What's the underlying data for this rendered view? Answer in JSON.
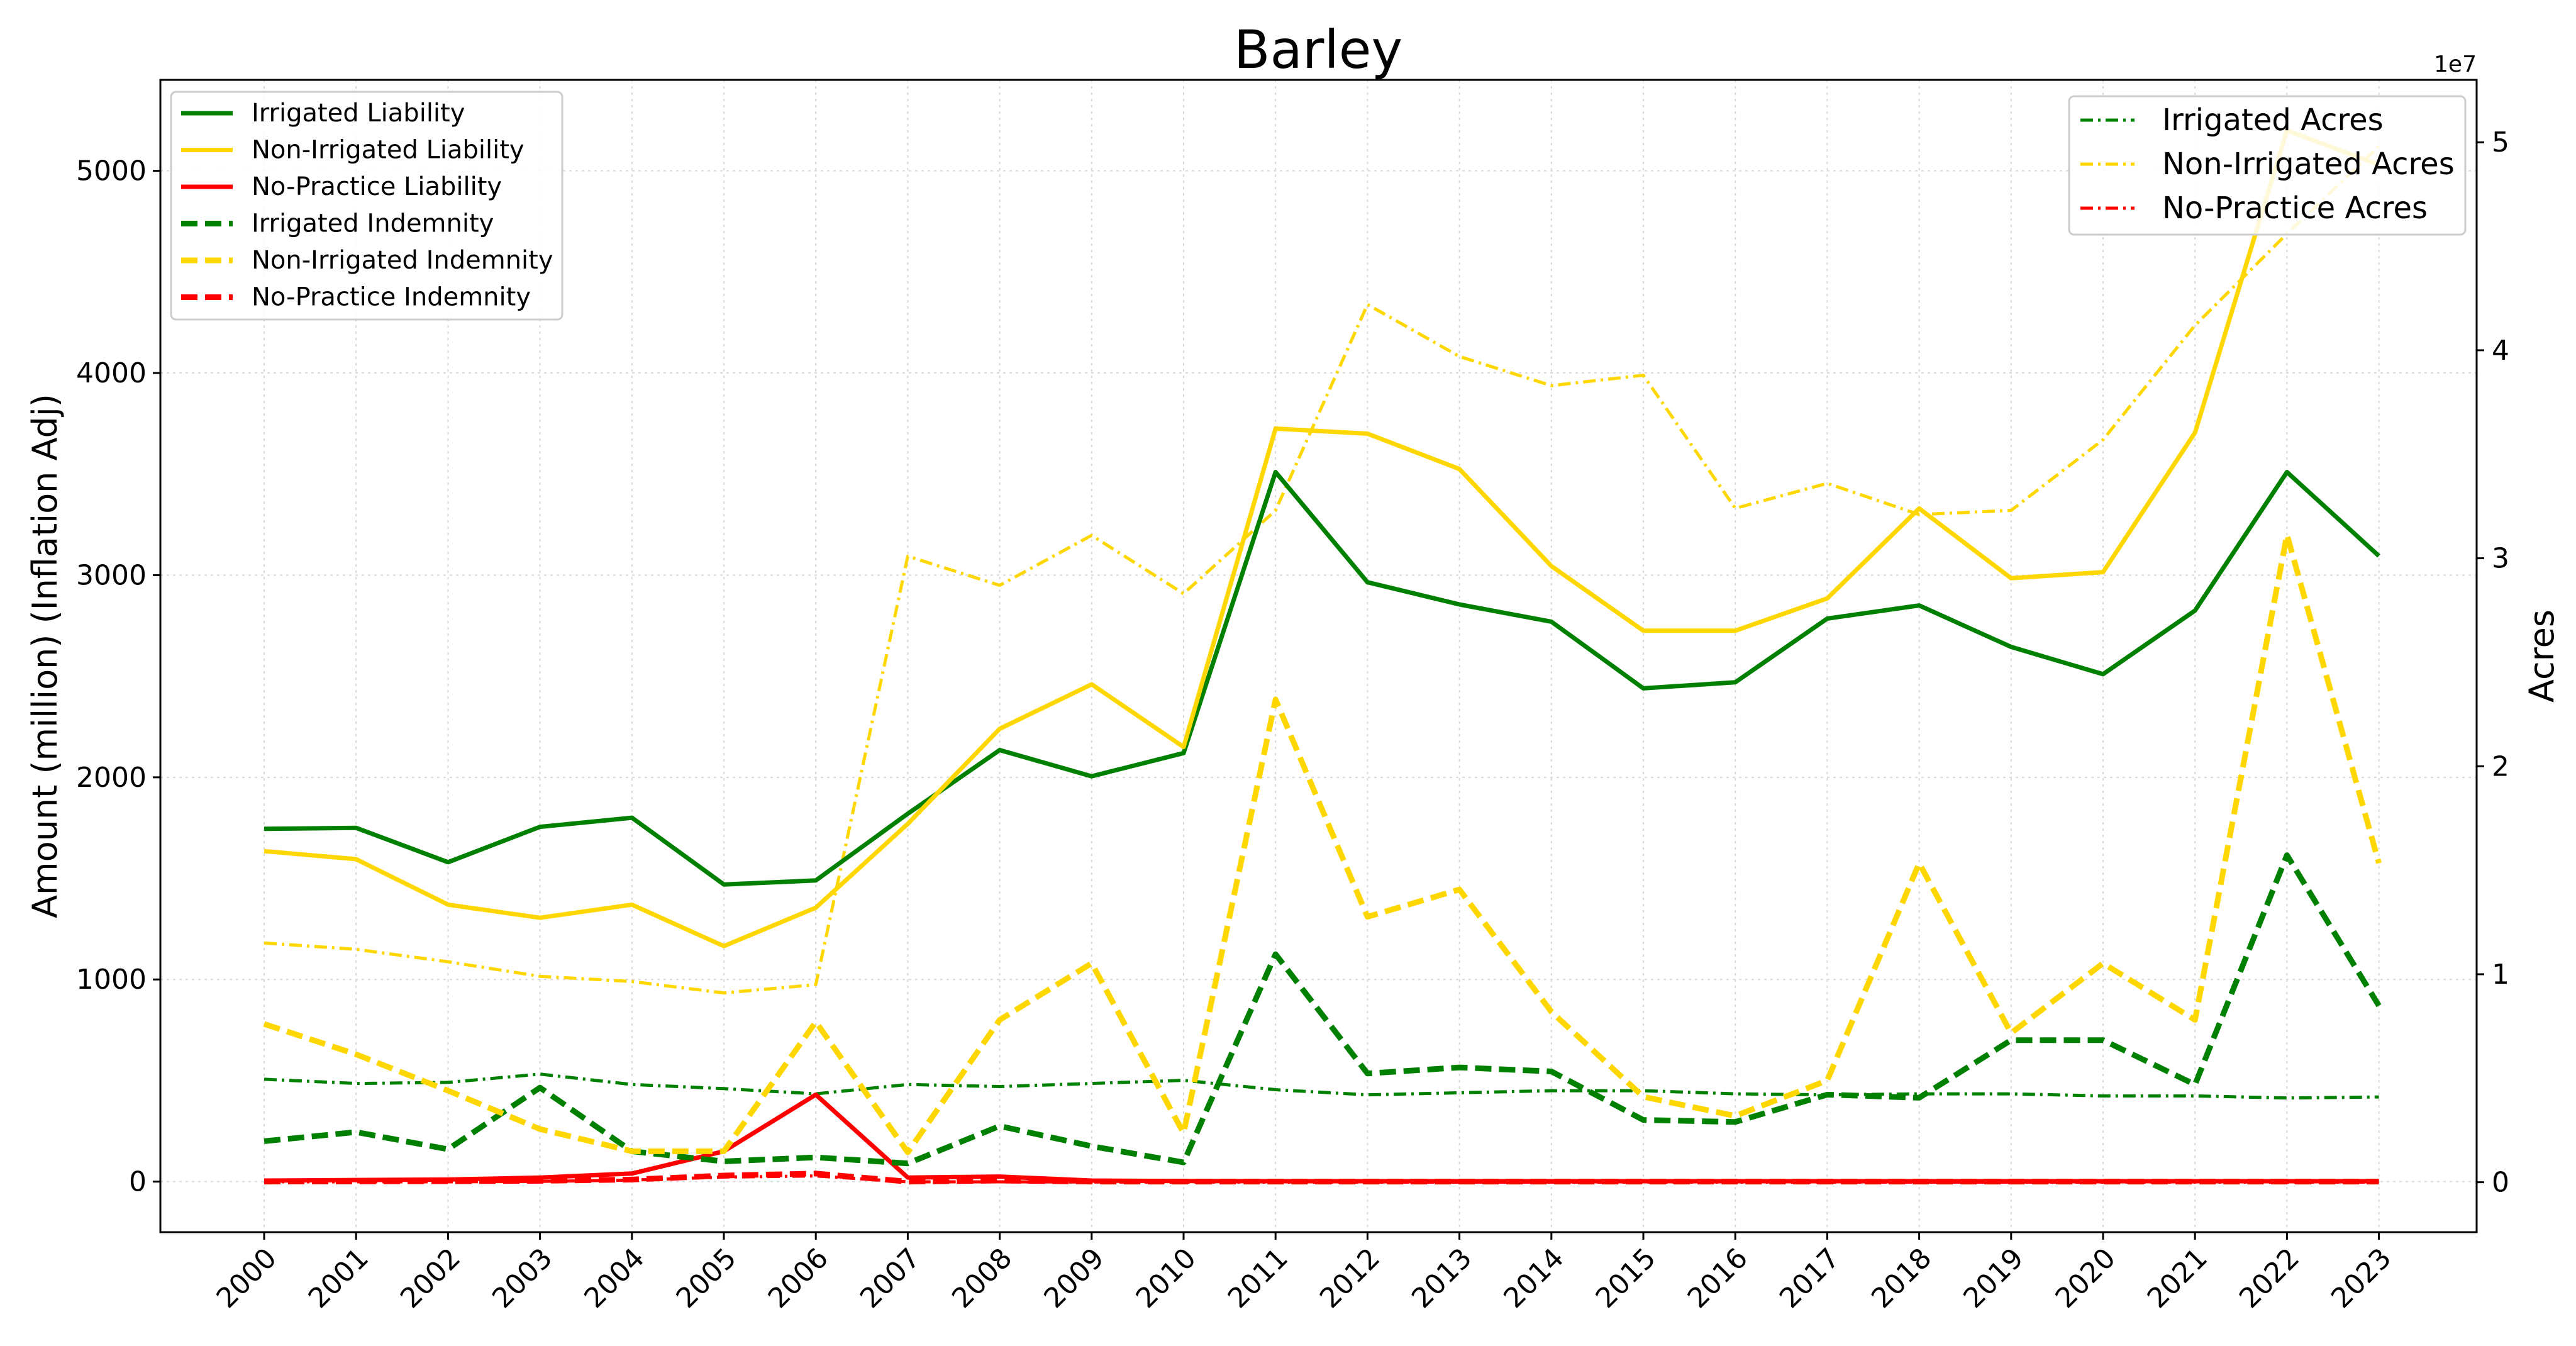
{
  "chart_data": {
    "type": "line",
    "title": "Barley",
    "ylabel_left": "Amount (million) (Inflation Adj)",
    "ylabel_right": "Acres",
    "right_offset_label": "1e7",
    "grid": true,
    "x": [
      "2000",
      "2001",
      "2002",
      "2003",
      "2004",
      "2005",
      "2006",
      "2007",
      "2008",
      "2009",
      "2010",
      "2011",
      "2012",
      "2013",
      "2014",
      "2015",
      "2016",
      "2017",
      "2018",
      "2019",
      "2020",
      "2021",
      "2022",
      "2023"
    ],
    "left_axis": {
      "ylim": [
        -250,
        5450
      ],
      "ticks": [
        0,
        1000,
        2000,
        3000,
        4000,
        5000
      ]
    },
    "right_axis": {
      "ylim": [
        -2400000,
        53000000
      ],
      "ticks": [
        0,
        1,
        2,
        3,
        4,
        5
      ],
      "tick_multiplier": 10000000
    },
    "legend_left_position": "upper-left",
    "legend_right_position": "upper-right",
    "series_left": [
      {
        "name": "Irrigated Liability",
        "color": "#008000",
        "style": "solid",
        "values": [
          1745,
          1750,
          1580,
          1755,
          1800,
          1470,
          1490,
          1820,
          2135,
          2005,
          2120,
          3510,
          2965,
          2855,
          2770,
          2440,
          2470,
          2785,
          2850,
          2645,
          2510,
          2825,
          3510,
          3095
        ]
      },
      {
        "name": "Non-Irrigated Liability",
        "color": "#FFD700",
        "style": "solid",
        "values": [
          1635,
          1595,
          1370,
          1305,
          1370,
          1165,
          1355,
          1770,
          2240,
          2460,
          2150,
          3725,
          3700,
          3525,
          3045,
          2725,
          2725,
          2885,
          3330,
          2985,
          3015,
          3705,
          5200,
          5030
        ]
      },
      {
        "name": "No-Practice Liability",
        "color": "#FF0000",
        "style": "solid",
        "values": [
          5,
          8,
          10,
          20,
          40,
          150,
          430,
          20,
          25,
          5,
          3,
          2,
          2,
          2,
          2,
          2,
          2,
          2,
          2,
          2,
          2,
          2,
          2,
          2
        ]
      },
      {
        "name": "Irrigated Indemnity",
        "color": "#008000",
        "style": "dashed",
        "values": [
          200,
          245,
          160,
          465,
          150,
          100,
          120,
          90,
          275,
          175,
          95,
          1125,
          535,
          565,
          545,
          305,
          295,
          430,
          415,
          700,
          700,
          480,
          1615,
          870
        ]
      },
      {
        "name": "Non-Irrigated Indemnity",
        "color": "#FFD700",
        "style": "dashed",
        "values": [
          780,
          630,
          450,
          260,
          150,
          150,
          790,
          145,
          800,
          1080,
          240,
          2385,
          1310,
          1445,
          840,
          420,
          325,
          500,
          1575,
          735,
          1080,
          800,
          3200,
          1575
        ]
      },
      {
        "name": "No-Practice Indemnity",
        "color": "#FF0000",
        "style": "dashed",
        "values": [
          0,
          1,
          2,
          4,
          10,
          30,
          40,
          0,
          5,
          0,
          0,
          0,
          0,
          0,
          0,
          0,
          0,
          0,
          0,
          0,
          0,
          0,
          0,
          0
        ]
      }
    ],
    "series_right": [
      {
        "name": "Irrigated Acres",
        "color": "#008000",
        "style": "dashdot",
        "values": [
          4950000,
          4750000,
          4800000,
          5200000,
          4700000,
          4500000,
          4250000,
          4700000,
          4600000,
          4750000,
          4900000,
          4450000,
          4200000,
          4300000,
          4400000,
          4400000,
          4250000,
          4200000,
          4250000,
          4250000,
          4150000,
          4150000,
          4050000,
          4100000
        ]
      },
      {
        "name": "Non-Irrigated Acres",
        "color": "#FFD700",
        "style": "dashdot",
        "values": [
          11500000,
          11200000,
          10600000,
          9900000,
          9650000,
          9100000,
          9500000,
          30100000,
          28700000,
          31100000,
          28300000,
          32300000,
          42200000,
          39700000,
          38300000,
          38800000,
          32400000,
          33600000,
          32100000,
          32300000,
          35700000,
          41200000,
          45600000,
          49800000
        ]
      },
      {
        "name": "No-Practice Acres",
        "color": "#FF0000",
        "style": "dashdot",
        "values": [
          20000,
          20000,
          20000,
          40000,
          100000,
          250000,
          300000,
          20000,
          20000,
          10000,
          5000,
          5000,
          5000,
          5000,
          5000,
          5000,
          5000,
          5000,
          5000,
          5000,
          5000,
          5000,
          5000,
          5000
        ]
      }
    ]
  }
}
